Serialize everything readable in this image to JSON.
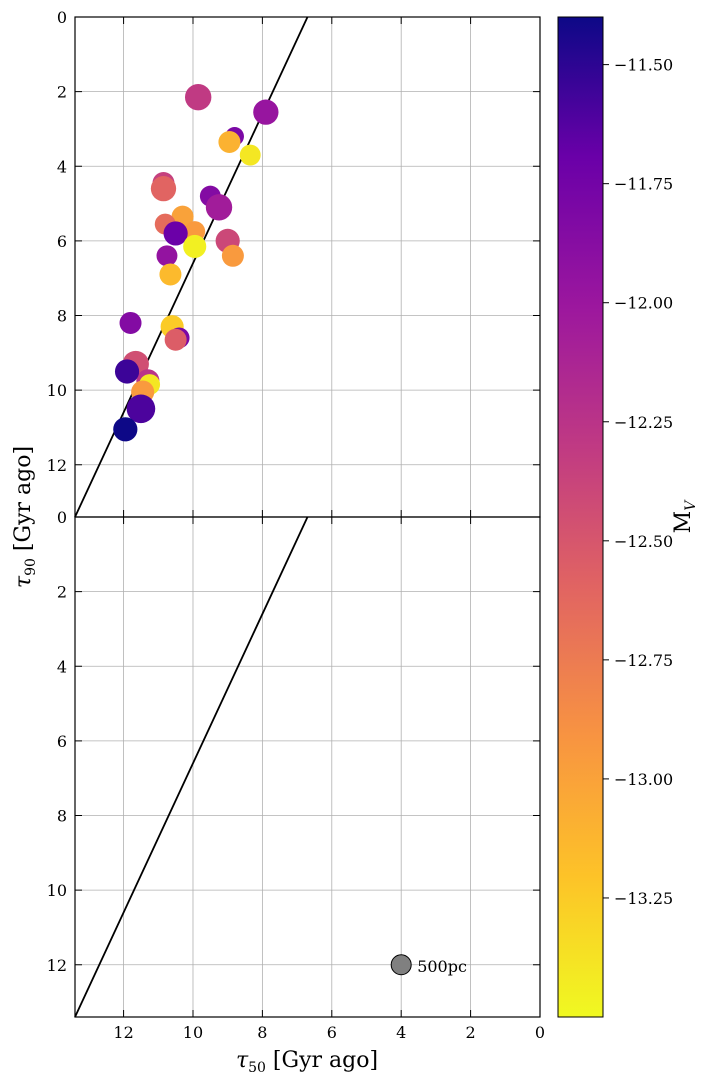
{
  "chart_data": {
    "type": "scatter",
    "xlabel_main": "τ",
    "xlabel_sub": "50",
    "xlabel_rest": " [Gyr ago]",
    "ylabel_main": "τ",
    "ylabel_sub": "90",
    "ylabel_rest": " [Gyr ago]",
    "xlim": [
      13.4,
      0
    ],
    "ylim": [
      0,
      13.4
    ],
    "x_ticks": [
      12,
      10,
      8,
      6,
      4,
      2,
      0
    ],
    "y_ticks_top": [
      0,
      2,
      4,
      6,
      8,
      10,
      12
    ],
    "y_ticks_bottom": [
      0,
      2,
      4,
      6,
      8,
      10,
      12
    ],
    "grid": true,
    "reference_line": {
      "x": [
        13.4,
        6.7
      ],
      "y": [
        13.4,
        0
      ]
    },
    "colorbar": {
      "label_main": "M",
      "label_sub": "V",
      "cmap": "plasma",
      "range": [
        -13.5,
        -11.4
      ],
      "ticks": [
        -11.5,
        -11.75,
        -12.0,
        -12.25,
        -12.5,
        -12.75,
        -13.0,
        -13.25
      ],
      "tick_labels": [
        "−11.50",
        "−11.75",
        "−12.00",
        "−12.25",
        "−12.50",
        "−12.75",
        "−13.00",
        "−13.25"
      ]
    },
    "size_legend": {
      "label": "500pc",
      "x": 4.0,
      "y": 12.0,
      "color": "#808080"
    },
    "series": [
      {
        "panel": "top",
        "points": [
          {
            "x": 9.85,
            "y": 2.15,
            "mv": -12.3,
            "size": 1.2
          },
          {
            "x": 7.9,
            "y": 2.55,
            "mv": -11.98,
            "size": 1.15
          },
          {
            "x": 8.8,
            "y": 3.2,
            "mv": -11.8,
            "size": 0.85
          },
          {
            "x": 8.95,
            "y": 3.35,
            "mv": -13.1,
            "size": 1.0
          },
          {
            "x": 8.35,
            "y": 3.7,
            "mv": -13.4,
            "size": 0.95
          },
          {
            "x": 10.85,
            "y": 4.45,
            "mv": -12.35,
            "size": 1.0
          },
          {
            "x": 10.85,
            "y": 4.6,
            "mv": -12.6,
            "size": 1.15
          },
          {
            "x": 9.5,
            "y": 4.8,
            "mv": -11.85,
            "size": 0.95
          },
          {
            "x": 9.25,
            "y": 5.1,
            "mv": -12.05,
            "size": 1.2
          },
          {
            "x": 10.3,
            "y": 5.35,
            "mv": -13.0,
            "size": 1.0
          },
          {
            "x": 10.8,
            "y": 5.55,
            "mv": -12.65,
            "size": 0.95
          },
          {
            "x": 9.95,
            "y": 5.75,
            "mv": -12.95,
            "size": 0.95
          },
          {
            "x": 10.5,
            "y": 5.8,
            "mv": -11.7,
            "size": 1.1
          },
          {
            "x": 9.0,
            "y": 6.0,
            "mv": -12.4,
            "size": 1.1
          },
          {
            "x": 9.95,
            "y": 6.15,
            "mv": -13.45,
            "size": 1.05
          },
          {
            "x": 8.85,
            "y": 6.4,
            "mv": -12.95,
            "size": 1.0
          },
          {
            "x": 10.75,
            "y": 6.4,
            "mv": -11.95,
            "size": 0.95
          },
          {
            "x": 10.65,
            "y": 6.9,
            "mv": -13.15,
            "size": 1.0
          },
          {
            "x": 11.8,
            "y": 8.2,
            "mv": -11.85,
            "size": 1.0
          },
          {
            "x": 10.6,
            "y": 8.3,
            "mv": -13.25,
            "size": 1.05
          },
          {
            "x": 10.4,
            "y": 8.6,
            "mv": -11.8,
            "size": 0.95
          },
          {
            "x": 10.5,
            "y": 8.65,
            "mv": -12.55,
            "size": 1.0
          },
          {
            "x": 11.65,
            "y": 9.3,
            "mv": -12.45,
            "size": 1.2
          },
          {
            "x": 11.3,
            "y": 9.75,
            "mv": -12.25,
            "size": 1.05
          },
          {
            "x": 11.25,
            "y": 9.85,
            "mv": -13.4,
            "size": 0.95
          },
          {
            "x": 11.9,
            "y": 9.5,
            "mv": -11.55,
            "size": 1.1
          },
          {
            "x": 11.45,
            "y": 10.05,
            "mv": -12.95,
            "size": 1.05
          },
          {
            "x": 11.5,
            "y": 10.5,
            "mv": -11.6,
            "size": 1.3
          },
          {
            "x": 11.95,
            "y": 11.05,
            "mv": -11.4,
            "size": 1.1
          }
        ]
      }
    ]
  }
}
